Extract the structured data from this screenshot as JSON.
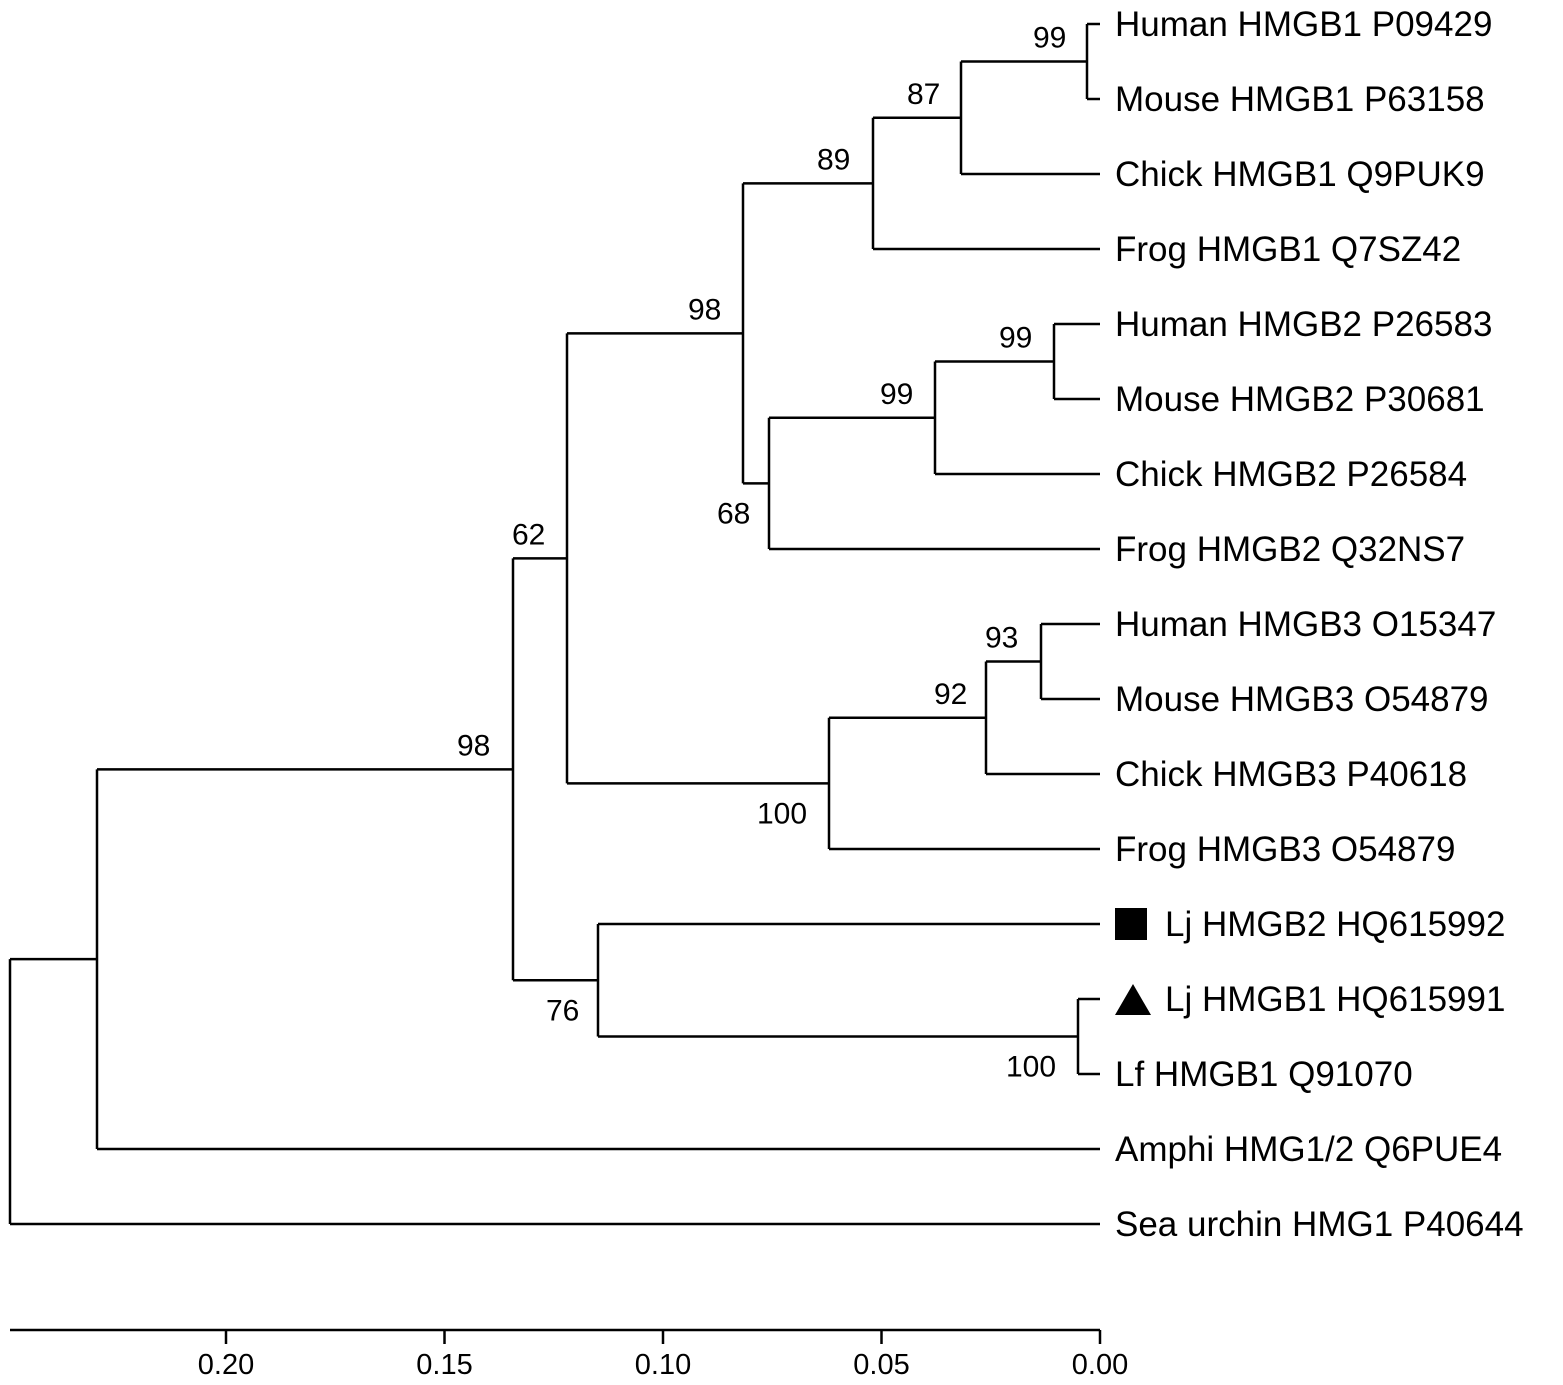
{
  "leaves": [
    {
      "label": "Human HMGB1 P09429"
    },
    {
      "label": "Mouse HMGB1 P63158"
    },
    {
      "label": "Chick HMGB1 Q9PUK9"
    },
    {
      "label": "Frog HMGB1 Q7SZ42"
    },
    {
      "label": "Human HMGB2 P26583"
    },
    {
      "label": "Mouse HMGB2 P30681"
    },
    {
      "label": "Chick HMGB2 P26584"
    },
    {
      "label": "Frog HMGB2 Q32NS7"
    },
    {
      "label": "Human HMGB3 O15347"
    },
    {
      "label": "Mouse HMGB3 O54879"
    },
    {
      "label": "Chick HMGB3 P40618"
    },
    {
      "label": "Frog HMGB3 O54879"
    },
    {
      "label": "Lj HMGB2 HQ615992",
      "marker": "square"
    },
    {
      "label": "Lj HMGB1 HQ615991",
      "marker": "triangle"
    },
    {
      "label": "Lf HMGB1 Q91070"
    },
    {
      "label": "Amphi HMG1/2 Q6PUE4"
    },
    {
      "label": "Sea urchin HMG1 P40644"
    }
  ],
  "nodes": [
    {
      "id": "n_h1hm",
      "children": [
        "L0",
        "L1"
      ],
      "support": "99",
      "label_pos": "above"
    },
    {
      "id": "n_h1c",
      "children": [
        "n_h1hm",
        "L2"
      ],
      "support": "87",
      "label_pos": "above"
    },
    {
      "id": "n_h1",
      "children": [
        "n_h1c",
        "L3"
      ],
      "support": "89",
      "label_pos": "above"
    },
    {
      "id": "n_h2hm",
      "children": [
        "L4",
        "L5"
      ],
      "support": "99",
      "label_pos": "above"
    },
    {
      "id": "n_h2c",
      "children": [
        "n_h2hm",
        "L6"
      ],
      "support": "99",
      "label_pos": "above"
    },
    {
      "id": "n_h2",
      "children": [
        "n_h2c",
        "L7"
      ],
      "support": "68",
      "label_pos": "below"
    },
    {
      "id": "n_h12",
      "children": [
        "n_h1",
        "n_h2"
      ],
      "support": "98",
      "label_pos": "above"
    },
    {
      "id": "n_h3hm",
      "children": [
        "L8",
        "L9"
      ],
      "support": "93",
      "label_pos": "above"
    },
    {
      "id": "n_h3c",
      "children": [
        "n_h3hm",
        "L10"
      ],
      "support": "92",
      "label_pos": "above"
    },
    {
      "id": "n_h3",
      "children": [
        "n_h3c",
        "L11"
      ],
      "support": "100",
      "label_pos": "below"
    },
    {
      "id": "n_gnath",
      "children": [
        "n_h12",
        "n_h3"
      ],
      "support": "62",
      "label_pos": "above"
    },
    {
      "id": "n_ljlf",
      "children": [
        "L13",
        "L14"
      ],
      "support": "100",
      "label_pos": "below"
    },
    {
      "id": "n_lamp",
      "children": [
        "L12",
        "n_ljlf"
      ],
      "support": "76",
      "label_pos": "below"
    },
    {
      "id": "n_vert",
      "children": [
        "n_gnath",
        "n_lamp"
      ],
      "support": "98",
      "label_pos": "above"
    },
    {
      "id": "n_chord",
      "children": [
        "n_vert",
        "L15"
      ],
      "support": "",
      "label_pos": "above"
    },
    {
      "id": "n_root",
      "children": [
        "n_chord",
        "L16"
      ],
      "support": "",
      "label_pos": "above"
    }
  ],
  "scale": {
    "ticks": [
      "0.20",
      "0.15",
      "0.10",
      "0.05",
      "0.00"
    ]
  }
}
